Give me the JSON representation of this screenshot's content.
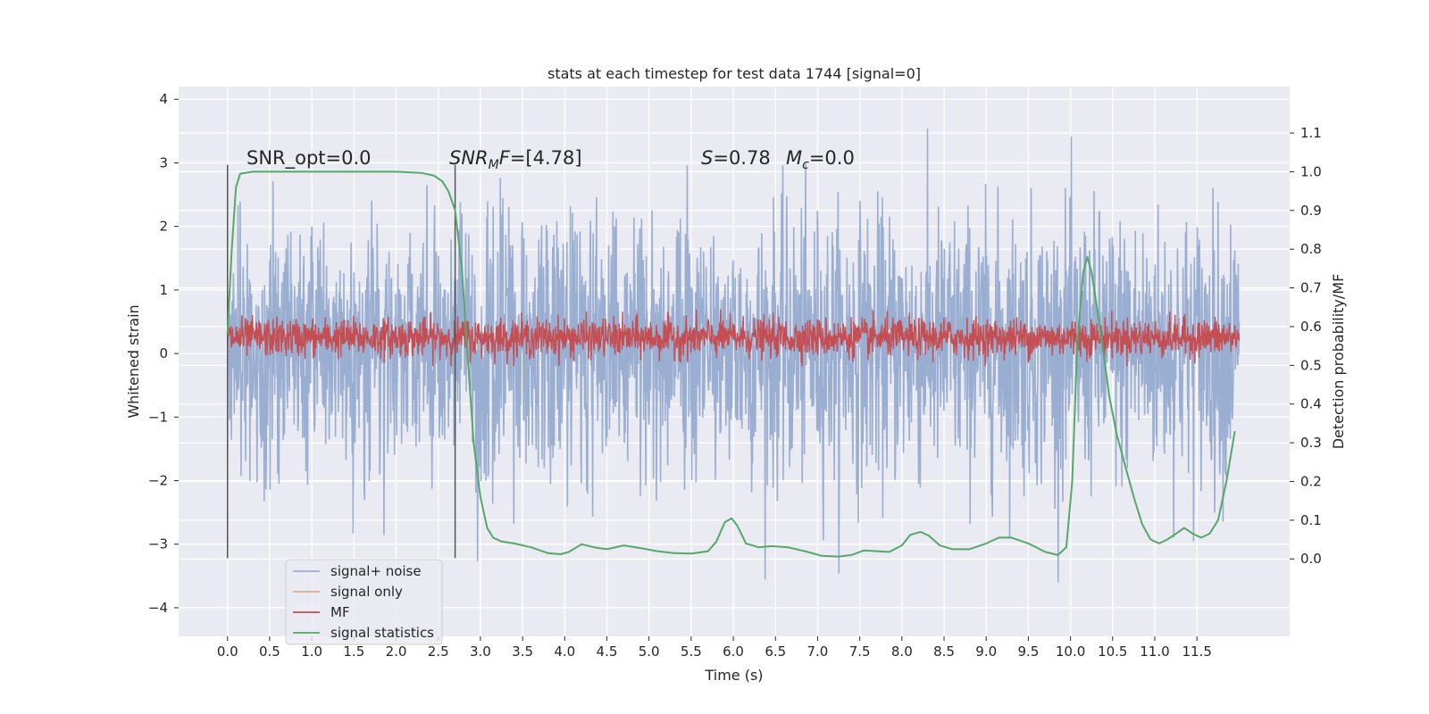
{
  "chart_data": {
    "type": "line",
    "title": "stats at each timestep for test data 1744 [signal=0]",
    "xlabel": "Time (s)",
    "ylabel": "Whitened strain",
    "ylabel_right": "Detection probability/MF",
    "xlim": [
      -0.58,
      12.6
    ],
    "ylim": [
      -4.45,
      4.2
    ],
    "ylim_right": [
      -0.2,
      1.22
    ],
    "x_ticks": [
      "0.0",
      "0.5",
      "1.0",
      "1.5",
      "2.0",
      "2.5",
      "3.0",
      "3.5",
      "4.0",
      "4.5",
      "5.0",
      "5.5",
      "6.0",
      "6.5",
      "7.0",
      "7.5",
      "8.0",
      "8.5",
      "9.0",
      "9.5",
      "10.0",
      "10.5",
      "11.0",
      "11.5"
    ],
    "y_ticks": [
      "4",
      "3",
      "2",
      "1",
      "0",
      "−1",
      "−2",
      "−3",
      "−4"
    ],
    "y_ticks_right": [
      "1.1",
      "1.0",
      "0.9",
      "0.8",
      "0.7",
      "0.6",
      "0.5",
      "0.4",
      "0.3",
      "0.2",
      "0.1",
      "0.0"
    ],
    "grid": true,
    "legend_position": "lower-left",
    "annotations": {
      "snr_opt": "SNR_opt=0.0",
      "snr_mf_sym": "SNR",
      "snr_mf_sub": "M",
      "snr_mf_sym2": "F",
      "snr_mf_val": "=[4.78]",
      "s_sym": "S",
      "s_val": "=0.78",
      "mc_sym": "M",
      "mc_sub": "c",
      "mc_val": "=0.0"
    },
    "vertical_markers": [
      0.0,
      2.7
    ],
    "series": [
      {
        "name": "signal+ noise",
        "color": "#9aaed1",
        "kind": "noise",
        "x_range": [
          0.0,
          12.0
        ],
        "envelope_typical": [
          -2.0,
          2.2
        ],
        "min": -3.6,
        "max": 3.8
      },
      {
        "name": "signal only",
        "color": "#e6a98f",
        "kind": "flat",
        "value": 0.0
      },
      {
        "name": "MF",
        "color": "#c44e52",
        "kind": "noise",
        "x_range": [
          0.0,
          12.0
        ],
        "center": 0.25,
        "envelope_typical": [
          -0.05,
          0.55
        ],
        "min": -0.2,
        "max": 1.0
      },
      {
        "name": "signal statistics",
        "color": "#55a868",
        "axis": "right",
        "x": [
          0.0,
          0.05,
          0.1,
          0.15,
          0.3,
          0.6,
          1.0,
          1.5,
          2.0,
          2.3,
          2.45,
          2.55,
          2.62,
          2.7,
          2.78,
          2.85,
          2.92,
          3.0,
          3.08,
          3.15,
          3.25,
          3.4,
          3.6,
          3.8,
          3.95,
          4.05,
          4.2,
          4.35,
          4.5,
          4.7,
          4.9,
          5.1,
          5.3,
          5.5,
          5.7,
          5.8,
          5.9,
          5.98,
          6.05,
          6.15,
          6.3,
          6.45,
          6.65,
          6.85,
          7.05,
          7.25,
          7.4,
          7.55,
          7.7,
          7.85,
          8.0,
          8.1,
          8.22,
          8.32,
          8.45,
          8.6,
          8.8,
          9.0,
          9.15,
          9.3,
          9.5,
          9.7,
          9.85,
          9.95,
          10.02,
          10.08,
          10.15,
          10.2,
          10.25,
          10.3,
          10.38,
          10.46,
          10.55,
          10.65,
          10.75,
          10.85,
          10.95,
          11.05,
          11.15,
          11.25,
          11.35,
          11.45,
          11.55,
          11.65,
          11.75,
          11.85,
          11.95
        ],
        "y": [
          0.58,
          0.8,
          0.96,
          0.995,
          1.0,
          1.0,
          1.0,
          1.0,
          1.0,
          0.997,
          0.99,
          0.975,
          0.95,
          0.9,
          0.75,
          0.52,
          0.3,
          0.16,
          0.08,
          0.055,
          0.045,
          0.04,
          0.03,
          0.015,
          0.012,
          0.018,
          0.038,
          0.03,
          0.025,
          0.035,
          0.028,
          0.02,
          0.015,
          0.014,
          0.02,
          0.045,
          0.095,
          0.105,
          0.085,
          0.04,
          0.03,
          0.033,
          0.03,
          0.02,
          0.008,
          0.006,
          0.01,
          0.022,
          0.02,
          0.018,
          0.035,
          0.062,
          0.07,
          0.06,
          0.035,
          0.025,
          0.025,
          0.04,
          0.055,
          0.055,
          0.04,
          0.018,
          0.01,
          0.03,
          0.2,
          0.55,
          0.74,
          0.78,
          0.74,
          0.67,
          0.55,
          0.42,
          0.32,
          0.24,
          0.16,
          0.09,
          0.05,
          0.04,
          0.05,
          0.065,
          0.08,
          0.065,
          0.055,
          0.065,
          0.1,
          0.2,
          0.33
        ]
      }
    ]
  }
}
